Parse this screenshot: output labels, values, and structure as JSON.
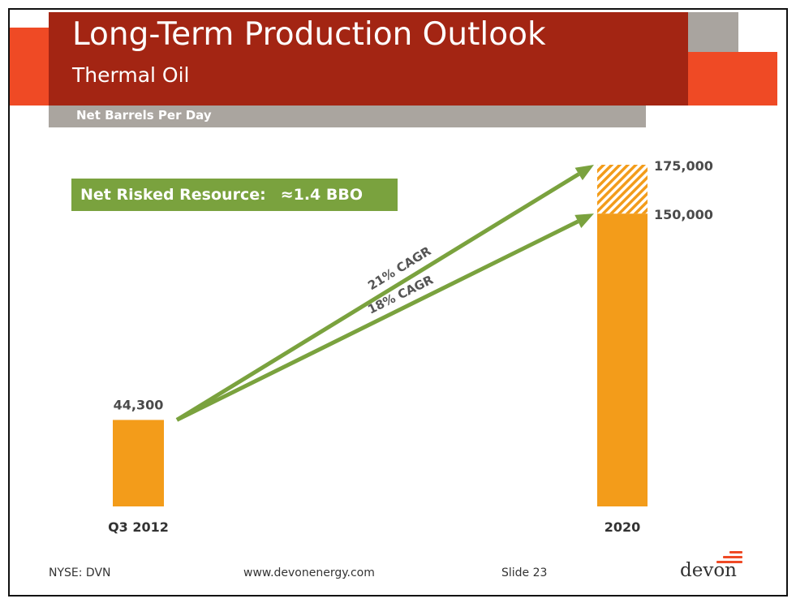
{
  "slide": {
    "title": "Long-Term Production Outlook",
    "subtitle": "Thermal Oil",
    "unit_label": "Net Barrels Per Day",
    "resource_label": "Net Risked Resource:",
    "resource_value": "≈1.4 BBO"
  },
  "chart_data": {
    "type": "bar",
    "categories": [
      "Q3 2012",
      "2020"
    ],
    "series": [
      {
        "values": [
          44300,
          150000
        ],
        "style": "solid"
      },
      {
        "values": [
          0,
          25000
        ],
        "style": "hatched"
      }
    ],
    "data_labels": [
      "44,300",
      "175,000",
      "150,000"
    ],
    "annotations": [
      "21% CAGR",
      "18% CAGR"
    ],
    "ylabel": "Net Barrels Per Day",
    "ylim": [
      0,
      175000
    ],
    "grid": false,
    "colors": {
      "bar": "#f39c1a",
      "arrow": "#7aa23e"
    }
  },
  "footer": {
    "ticker": "NYSE: DVN",
    "website": "www.devonenergy.com",
    "slide_number": "Slide 23",
    "logo_text": "devon"
  },
  "colors": {
    "title_band": "#a32513",
    "accent_orange": "#ef4a25",
    "grey_band": "#aaa59f",
    "green": "#7aa23e"
  }
}
